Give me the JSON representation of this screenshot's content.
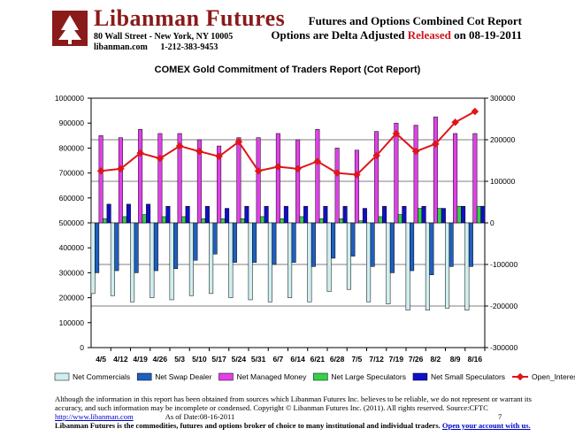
{
  "header": {
    "brand": "Libanman Futures",
    "address": "80 Wall Street - New York, NY 10005",
    "website": "libanman.com",
    "phone": "1-212-383-9453",
    "report_line1": "Futures and Options Combined Cot Report",
    "report_line2_prefix": "Options are Delta Adjusted ",
    "report_line2_red": "Released",
    "report_line2_suffix": " on 08-19-2011",
    "colors": {
      "brand": "#8b1a1a",
      "released": "#d0161b"
    }
  },
  "footer": {
    "disclaimer1": "Although the information in this report has been obtained from sources which Libanman Futures Inc. believes to be reliable, we do not represent or warrant its",
    "disclaimer2": "accuracy, and such information may be incomplete or condensed. Copyright © Libanman Futures Inc. (2011). All rights reserved.  Source:CFTC",
    "link": "http://www.libanman.com",
    "as_of": "As of Date:08-16-2011",
    "page": "7",
    "tagline": "Libanman Futures is the commodities, futures and options broker of choice to many institutional and individual traders.",
    "cta": "Open your account with us."
  },
  "chart_data": {
    "type": "bar",
    "title": "COMEX Gold Commitment of Traders Report (Cot Report)",
    "categories": [
      "4/5",
      "4/12",
      "4/19",
      "4/26",
      "5/3",
      "5/10",
      "5/17",
      "5/24",
      "5/31",
      "6/7",
      "6/14",
      "6/21",
      "6/28",
      "7/5",
      "7/12",
      "7/19",
      "7/26",
      "8/2",
      "8/9",
      "8/16"
    ],
    "left_axis": {
      "ylim": [
        0,
        1000000
      ],
      "ticks": [
        0,
        100000,
        200000,
        300000,
        400000,
        500000,
        600000,
        700000,
        800000,
        900000,
        1000000
      ]
    },
    "right_axis": {
      "ylim": [
        -300000,
        300000
      ],
      "ticks": [
        -300000,
        -200000,
        -100000,
        0,
        100000,
        200000,
        300000
      ]
    },
    "series": [
      {
        "name": "Net Commercials",
        "axis": "right",
        "color": "#cfeef0",
        "values": [
          -170000,
          -175000,
          -190000,
          -180000,
          -185000,
          -175000,
          -170000,
          -180000,
          -185000,
          -190000,
          -180000,
          -190000,
          -165000,
          -160000,
          -190000,
          -195000,
          -210000,
          -210000,
          -205000,
          -210000
        ]
      },
      {
        "name": "Net Swap Dealer",
        "axis": "right",
        "color": "#1f5fbf",
        "values": [
          -120000,
          -115000,
          -120000,
          -115000,
          -110000,
          -90000,
          -75000,
          -95000,
          -95000,
          -100000,
          -95000,
          -105000,
          -85000,
          -80000,
          -105000,
          -120000,
          -115000,
          -125000,
          -105000,
          -105000
        ]
      },
      {
        "name": "Net Managed Money",
        "axis": "right",
        "color": "#e040e8",
        "values": [
          210000,
          205000,
          225000,
          215000,
          215000,
          200000,
          185000,
          205000,
          205000,
          215000,
          200000,
          225000,
          180000,
          175000,
          220000,
          240000,
          235000,
          255000,
          215000,
          215000
        ]
      },
      {
        "name": "Net Large Speculators",
        "axis": "right",
        "color": "#35d04a",
        "values": [
          10000,
          15000,
          20000,
          15000,
          15000,
          10000,
          10000,
          10000,
          15000,
          10000,
          15000,
          10000,
          10000,
          5000,
          15000,
          20000,
          35000,
          35000,
          40000,
          40000
        ]
      },
      {
        "name": "Net Small Speculators",
        "axis": "right",
        "color": "#1010c8",
        "values": [
          45000,
          45000,
          45000,
          40000,
          40000,
          40000,
          35000,
          40000,
          40000,
          40000,
          40000,
          40000,
          40000,
          35000,
          40000,
          40000,
          40000,
          35000,
          40000,
          40000
        ]
      },
      {
        "name": "Open_Interest_All",
        "axis": "right",
        "type": "line",
        "color": "#e0141b",
        "values": [
          125000,
          130000,
          168000,
          155000,
          185000,
          172000,
          160000,
          195000,
          125000,
          135000,
          130000,
          148000,
          120000,
          116000,
          162000,
          215000,
          172000,
          190000,
          242000,
          268000
        ]
      }
    ],
    "legend": "bottom"
  }
}
